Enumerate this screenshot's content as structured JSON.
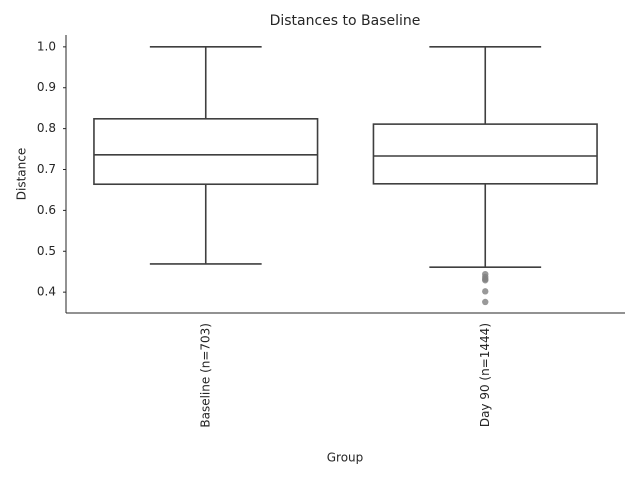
{
  "chart_data": {
    "type": "box",
    "title": "Distances to Baseline",
    "x_label": "Group",
    "y_label": "Distance",
    "categories": [
      "Baseline (n=703)",
      "Day 90 (n=1444)"
    ],
    "boxes": [
      {
        "min": 0.469,
        "q1": 0.664,
        "median": 0.736,
        "q3": 0.824,
        "max": 1.0,
        "outliers": []
      },
      {
        "min": 0.461,
        "q1": 0.665,
        "median": 0.733,
        "q3": 0.811,
        "max": 1.0,
        "outliers": [
          0.444,
          0.437,
          0.432,
          0.429,
          0.402,
          0.376
        ]
      }
    ],
    "color": "#3f3f3f",
    "outlier_color": "#7f7f7f",
    "ylim": [
      0.349,
      1.029
    ],
    "yticks": [
      0.4,
      0.5,
      0.6,
      0.7,
      0.8,
      0.9,
      {
        "value": 1.0,
        "label": "1.0"
      }
    ],
    "grid": false
  }
}
